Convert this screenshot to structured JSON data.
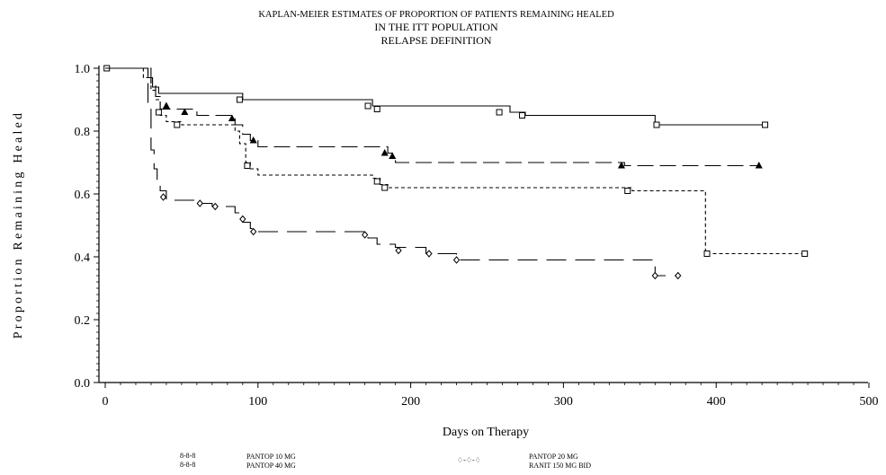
{
  "chart_data": {
    "type": "line",
    "step": true,
    "title_lines": [
      "KAPLAN-MEIER ESTIMATES OF PROPORTION OF PATIENTS REMAINING HEALED",
      "IN THE ITT POPULATION",
      "RELAPSE DEFINITION"
    ],
    "xlabel": "Days on Therapy",
    "ylabel": "Proportion Remaining Healed",
    "xlim": [
      0,
      500
    ],
    "ylim": [
      0,
      1.0
    ],
    "x_ticks": [
      0,
      100,
      200,
      300,
      400,
      500
    ],
    "x_tick_labels": [
      "0",
      "100",
      "200",
      "300",
      "400",
      "500"
    ],
    "y_ticks": [
      0.0,
      0.2,
      0.4,
      0.6,
      0.8,
      1.0
    ],
    "y_tick_labels": [
      "0.0",
      "0.2",
      "0.4",
      "0.6",
      "0.8",
      "1.0"
    ],
    "legend_position": "bottom",
    "legend": {
      "left_symbols": "8-8-8\n8-8-8",
      "right_symbols": "♢-♢-♢",
      "entries": [
        "PANTOP 10 MG",
        "PANTOP 40 MG",
        "PANTOP 20 MG",
        "RANIT 150 MG BID"
      ]
    },
    "series": [
      {
        "name": "PANTOP 10 MG",
        "dash": "4,3",
        "marker": "square",
        "points": [
          [
            0,
            1.0
          ],
          [
            20,
            1.0
          ],
          [
            25,
            0.97
          ],
          [
            30,
            0.93
          ],
          [
            33,
            0.9
          ],
          [
            36,
            0.85
          ],
          [
            40,
            0.83
          ],
          [
            50,
            0.82
          ],
          [
            80,
            0.82
          ],
          [
            85,
            0.8
          ],
          [
            88,
            0.76
          ],
          [
            92,
            0.7
          ],
          [
            95,
            0.68
          ],
          [
            100,
            0.66
          ],
          [
            170,
            0.66
          ],
          [
            175,
            0.65
          ],
          [
            180,
            0.63
          ],
          [
            185,
            0.62
          ],
          [
            340,
            0.62
          ],
          [
            345,
            0.61
          ],
          [
            393,
            0.61
          ],
          [
            393,
            0.41
          ],
          [
            458,
            0.41
          ]
        ],
        "censors": [
          [
            35,
            0.86
          ],
          [
            47,
            0.82
          ],
          [
            93,
            0.69
          ],
          [
            178,
            0.64
          ],
          [
            183,
            0.62
          ],
          [
            342,
            0.61
          ],
          [
            394,
            0.41
          ],
          [
            458,
            0.41
          ]
        ]
      },
      {
        "name": "PANTOP 40 MG",
        "dash": "",
        "marker": "square",
        "points": [
          [
            0,
            1.0
          ],
          [
            25,
            1.0
          ],
          [
            28,
            0.97
          ],
          [
            31,
            0.94
          ],
          [
            35,
            0.92
          ],
          [
            85,
            0.92
          ],
          [
            90,
            0.9
          ],
          [
            170,
            0.9
          ],
          [
            175,
            0.88
          ],
          [
            260,
            0.88
          ],
          [
            265,
            0.86
          ],
          [
            275,
            0.85
          ],
          [
            355,
            0.85
          ],
          [
            360,
            0.82
          ],
          [
            432,
            0.82
          ]
        ],
        "censors": [
          [
            1,
            1.0
          ],
          [
            88,
            0.9
          ],
          [
            172,
            0.88
          ],
          [
            178,
            0.87
          ],
          [
            258,
            0.86
          ],
          [
            273,
            0.85
          ],
          [
            361,
            0.82
          ],
          [
            432,
            0.82
          ]
        ]
      },
      {
        "name": "PANTOP 20 MG",
        "dash": "18,7",
        "marker": "triangle",
        "points": [
          [
            0,
            1.0
          ],
          [
            28,
            1.0
          ],
          [
            30,
            0.95
          ],
          [
            33,
            0.91
          ],
          [
            36,
            0.87
          ],
          [
            55,
            0.87
          ],
          [
            60,
            0.85
          ],
          [
            82,
            0.85
          ],
          [
            85,
            0.82
          ],
          [
            90,
            0.79
          ],
          [
            95,
            0.77
          ],
          [
            100,
            0.75
          ],
          [
            180,
            0.75
          ],
          [
            185,
            0.73
          ],
          [
            188,
            0.71
          ],
          [
            190,
            0.7
          ],
          [
            335,
            0.7
          ],
          [
            340,
            0.69
          ],
          [
            428,
            0.69
          ]
        ],
        "censors": [
          [
            40,
            0.88
          ],
          [
            52,
            0.86
          ],
          [
            83,
            0.84
          ],
          [
            97,
            0.77
          ],
          [
            183,
            0.73
          ],
          [
            188,
            0.72
          ],
          [
            338,
            0.69
          ],
          [
            428,
            0.69
          ]
        ]
      },
      {
        "name": "RANIT 150 MG BID",
        "dash": "22,10",
        "marker": "diamond",
        "points": [
          [
            0,
            1.0
          ],
          [
            26,
            1.0
          ],
          [
            28,
            0.88
          ],
          [
            30,
            0.74
          ],
          [
            32,
            0.68
          ],
          [
            34,
            0.64
          ],
          [
            36,
            0.61
          ],
          [
            40,
            0.58
          ],
          [
            55,
            0.58
          ],
          [
            60,
            0.57
          ],
          [
            70,
            0.56
          ],
          [
            85,
            0.54
          ],
          [
            90,
            0.51
          ],
          [
            95,
            0.49
          ],
          [
            100,
            0.48
          ],
          [
            168,
            0.48
          ],
          [
            172,
            0.46
          ],
          [
            178,
            0.44
          ],
          [
            190,
            0.43
          ],
          [
            210,
            0.41
          ],
          [
            230,
            0.39
          ],
          [
            360,
            0.39
          ],
          [
            360,
            0.34
          ],
          [
            375,
            0.34
          ]
        ],
        "censors": [
          [
            38,
            0.59
          ],
          [
            62,
            0.57
          ],
          [
            72,
            0.56
          ],
          [
            90,
            0.52
          ],
          [
            97,
            0.48
          ],
          [
            170,
            0.47
          ],
          [
            192,
            0.42
          ],
          [
            212,
            0.41
          ],
          [
            230,
            0.39
          ],
          [
            360,
            0.34
          ],
          [
            375,
            0.34
          ]
        ]
      }
    ]
  }
}
